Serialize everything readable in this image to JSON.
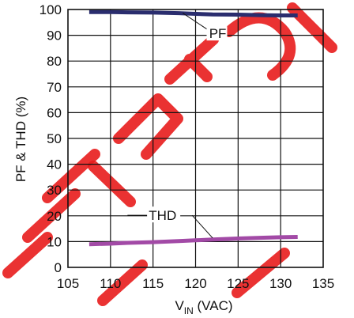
{
  "chart_data": {
    "type": "line",
    "xlabel_main": "V",
    "xlabel_sub": "IN",
    "xlabel_unit": " (VAC)",
    "ylabel": "PF & THD (%)",
    "xlim": [
      105,
      135
    ],
    "ylim": [
      0,
      100
    ],
    "x_ticks": [
      105,
      110,
      115,
      120,
      125,
      130,
      135
    ],
    "y_ticks": [
      0,
      10,
      20,
      30,
      40,
      50,
      60,
      70,
      80,
      90,
      100
    ],
    "grid": true,
    "series": [
      {
        "name": "PF",
        "color": "#2a2d6e",
        "x": [
          107.5,
          110,
          112,
          115,
          118,
          120,
          122,
          125,
          128,
          130,
          132
        ],
        "y": [
          99.0,
          99.0,
          98.9,
          98.8,
          98.6,
          98.3,
          98.1,
          98.0,
          97.8,
          97.7,
          97.7
        ]
      },
      {
        "name": "THD",
        "color": "#a24aa6",
        "x": [
          107.5,
          110,
          112,
          115,
          118,
          120,
          122,
          125,
          128,
          130,
          132
        ],
        "y": [
          9.0,
          9.2,
          9.5,
          9.8,
          10.2,
          10.5,
          10.8,
          11.2,
          11.5,
          11.7,
          11.8
        ]
      }
    ],
    "annotations": [
      {
        "text": "PF",
        "series": "PF"
      },
      {
        "text": "THD",
        "series": "THD"
      }
    ],
    "watermark_text": "RETIRED FOR NEW DESIGNS"
  }
}
